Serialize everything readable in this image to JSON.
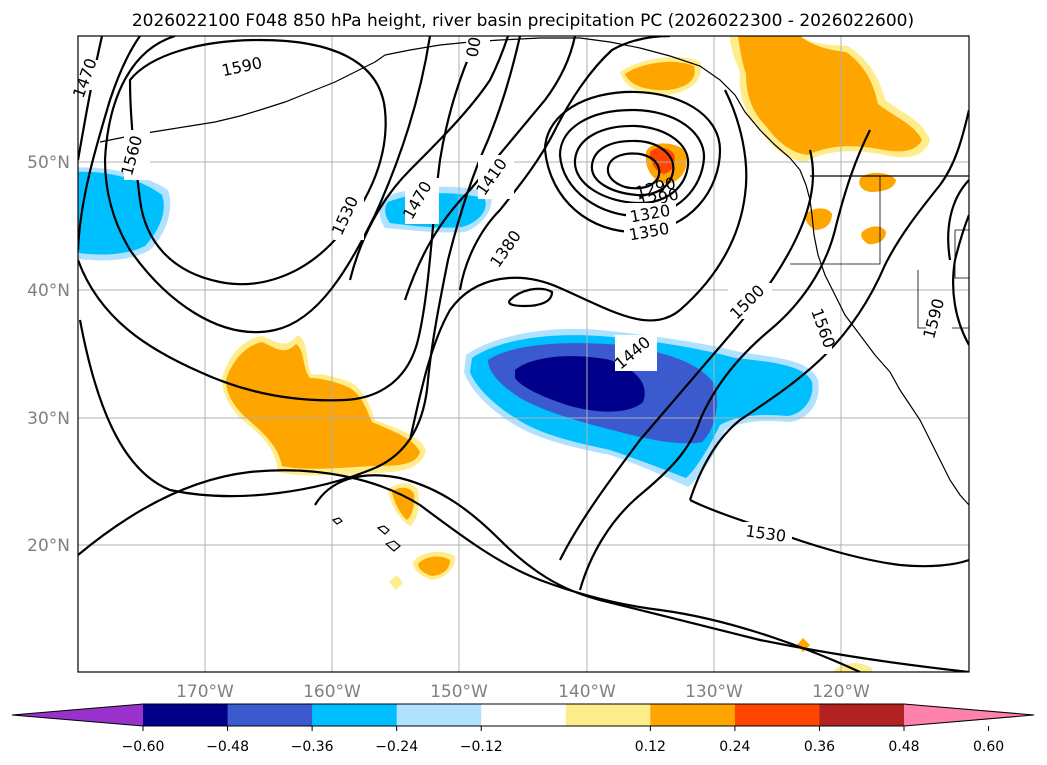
{
  "title": "2026022100 F048 850 hPa height, river basin precipitation PC (2026022300 - 2026022600)",
  "lat_labels": [
    "50°N",
    "40°N",
    "30°N",
    "20°N"
  ],
  "lon_labels": [
    "170°W",
    "160°W",
    "150°W",
    "140°W",
    "130°W",
    "120°W"
  ],
  "contour_labels": [
    "1470",
    "1590",
    "1560",
    "1530",
    "1470",
    "1410",
    "1380",
    "1440",
    "1290",
    "1290",
    "1320",
    "1350",
    "1500",
    "1560",
    "1590",
    "1530",
    "00"
  ],
  "colorbar": {
    "ticks": [
      "−0.60",
      "−0.48",
      "−0.36",
      "−0.24",
      "−0.12",
      "0.12",
      "0.24",
      "0.36",
      "0.48",
      "0.60"
    ],
    "colors": [
      "#9932cc",
      "#00008b",
      "#3a5acd",
      "#00bfff",
      "#b0e2ff",
      "#ffffff",
      "#ffec8b",
      "#ffa500",
      "#ff4500",
      "#b22222",
      "#ff82ab"
    ]
  },
  "chart_data": {
    "type": "map",
    "variable_contours": "850 hPa height",
    "variable_shading": "river basin precipitation PC",
    "lat_range": [
      10,
      60
    ],
    "lon_range": [
      -180,
      -110
    ],
    "grid": true
  }
}
